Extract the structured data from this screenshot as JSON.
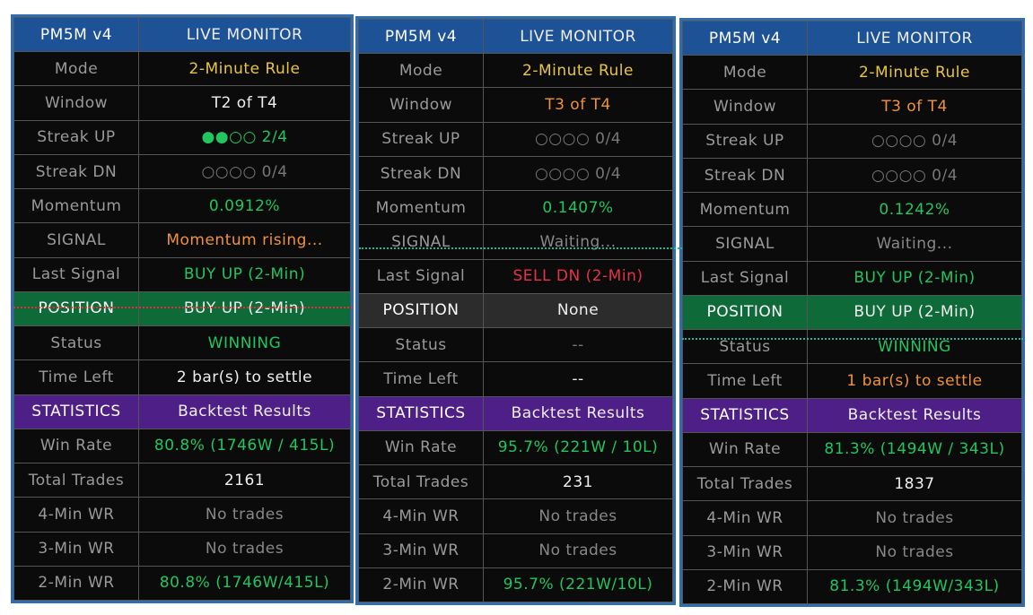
{
  "colors": {
    "header": "#1d5296",
    "green": "#22c55e",
    "yellow": "#e8c547",
    "orange": "#f0923a",
    "red": "#e5324b",
    "white": "#eeeeee",
    "gray": "#777777",
    "purple": "#4e1f86",
    "position_green": "#0f6a3a",
    "position_gray": "#2c2c2c"
  },
  "panels": [
    {
      "rows": [
        {
          "label": "PM5M v4",
          "value": "LIVE MONITOR",
          "style": "hdr"
        },
        {
          "label": "Mode",
          "value": "2-Minute Rule",
          "color": "#e8c547"
        },
        {
          "label": "Window",
          "value": "T2 of T4",
          "color": "#eeeeee"
        },
        {
          "label": "Streak UP",
          "value": "●●○○  2/4",
          "color": "#22c55e"
        },
        {
          "label": "Streak DN",
          "value": "○○○○  0/4",
          "color": "#777777"
        },
        {
          "label": "Momentum",
          "value": "0.0912%",
          "color": "#22c55e"
        },
        {
          "label": "SIGNAL",
          "value": "Momentum rising...",
          "color": "#f0923a"
        },
        {
          "label": "Last Signal",
          "value": "BUY UP  (2-Min)",
          "color": "#22c55e"
        },
        {
          "label": "POSITION",
          "value": "BUY UP (2-Min)",
          "style": "pos-green"
        },
        {
          "label": "Status",
          "value": "WINNING",
          "color": "#22c55e"
        },
        {
          "label": "Time Left",
          "value": "2 bar(s) to settle",
          "color": "#eeeeee"
        },
        {
          "label": "STATISTICS",
          "value": "Backtest Results",
          "style": "stats"
        },
        {
          "label": "Win Rate",
          "value": "80.8%  (1746W / 415L)",
          "color": "#22c55e"
        },
        {
          "label": "Total Trades",
          "value": "2161",
          "color": "#eeeeee"
        },
        {
          "label": "4-Min WR",
          "value": "No trades",
          "color": "#888888"
        },
        {
          "label": "3-Min WR",
          "value": "No trades",
          "color": "#888888"
        },
        {
          "label": "2-Min WR",
          "value": "80.8%  (1746W/415L)",
          "color": "#22c55e"
        }
      ]
    },
    {
      "rows": [
        {
          "label": "PM5M v4",
          "value": "LIVE MONITOR",
          "style": "hdr"
        },
        {
          "label": "Mode",
          "value": "2-Minute Rule",
          "color": "#e8c547"
        },
        {
          "label": "Window",
          "value": "T3 of T4",
          "color": "#f0923a"
        },
        {
          "label": "Streak UP",
          "value": "○○○○  0/4",
          "color": "#777777"
        },
        {
          "label": "Streak DN",
          "value": "○○○○  0/4",
          "color": "#777777"
        },
        {
          "label": "Momentum",
          "value": "0.1407%",
          "color": "#22c55e"
        },
        {
          "label": "SIGNAL",
          "value": "Waiting...",
          "color": "#888888"
        },
        {
          "label": "Last Signal",
          "value": "SELL DN (2-Min)",
          "color": "#e5324b"
        },
        {
          "label": "POSITION",
          "value": "None",
          "style": "pos-gray"
        },
        {
          "label": "Status",
          "value": "--",
          "color": "#777777"
        },
        {
          "label": "Time Left",
          "value": "--",
          "color": "#eeeeee"
        },
        {
          "label": "STATISTICS",
          "value": "Backtest Results",
          "style": "stats"
        },
        {
          "label": "Win Rate",
          "value": "95.7%  (221W / 10L)",
          "color": "#22c55e"
        },
        {
          "label": "Total Trades",
          "value": "231",
          "color": "#eeeeee"
        },
        {
          "label": "4-Min WR",
          "value": "No trades",
          "color": "#888888"
        },
        {
          "label": "3-Min WR",
          "value": "No trades",
          "color": "#888888"
        },
        {
          "label": "2-Min WR",
          "value": "95.7%  (221W/10L)",
          "color": "#22c55e"
        }
      ]
    },
    {
      "rows": [
        {
          "label": "PM5M v4",
          "value": "LIVE MONITOR",
          "style": "hdr"
        },
        {
          "label": "Mode",
          "value": "2-Minute Rule",
          "color": "#e8c547"
        },
        {
          "label": "Window",
          "value": "T3 of T4",
          "color": "#f0923a"
        },
        {
          "label": "Streak UP",
          "value": "○○○○  0/4",
          "color": "#777777"
        },
        {
          "label": "Streak DN",
          "value": "○○○○  0/4",
          "color": "#777777"
        },
        {
          "label": "Momentum",
          "value": "0.1242%",
          "color": "#22c55e"
        },
        {
          "label": "SIGNAL",
          "value": "Waiting...",
          "color": "#888888"
        },
        {
          "label": "Last Signal",
          "value": "BUY UP  (2-Min)",
          "color": "#22c55e"
        },
        {
          "label": "POSITION",
          "value": "BUY UP (2-Min)",
          "style": "pos-green"
        },
        {
          "label": "Status",
          "value": "WINNING",
          "color": "#22c55e"
        },
        {
          "label": "Time Left",
          "value": "1 bar(s) to settle",
          "color": "#f0923a"
        },
        {
          "label": "STATISTICS",
          "value": "Backtest Results",
          "style": "stats"
        },
        {
          "label": "Win Rate",
          "value": "81.3%  (1494W / 343L)",
          "color": "#22c55e"
        },
        {
          "label": "Total Trades",
          "value": "1837",
          "color": "#eeeeee"
        },
        {
          "label": "4-Min WR",
          "value": "No trades",
          "color": "#888888"
        },
        {
          "label": "3-Min WR",
          "value": "No trades",
          "color": "#888888"
        },
        {
          "label": "2-Min WR",
          "value": "81.3%  (1494W/343L)",
          "color": "#22c55e"
        }
      ]
    }
  ]
}
